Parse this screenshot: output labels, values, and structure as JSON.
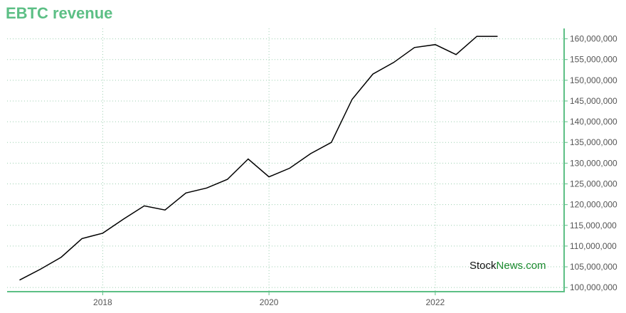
{
  "title": "EBTC revenue",
  "watermark": {
    "part1": "Stock",
    "part2": "News",
    "part3": ".com"
  },
  "colors": {
    "title": "#5cbf85",
    "axis": "#5cbf85",
    "grid": "#9ccfb0",
    "line": "#000000"
  },
  "chart_data": {
    "type": "line",
    "title": "EBTC revenue",
    "xlabel": "",
    "ylabel": "",
    "xlim": [
      2016.85,
      2023.55
    ],
    "ylim": [
      99000000,
      162500000
    ],
    "grid": true,
    "x_ticks": [
      {
        "value": 2018,
        "label": "2018"
      },
      {
        "value": 2020,
        "label": "2020"
      },
      {
        "value": 2022,
        "label": "2022"
      }
    ],
    "y_ticks": [
      {
        "value": 100000000,
        "label": "100,000,000"
      },
      {
        "value": 105000000,
        "label": "105,000,000"
      },
      {
        "value": 110000000,
        "label": "110,000,000"
      },
      {
        "value": 115000000,
        "label": "115,000,000"
      },
      {
        "value": 120000000,
        "label": "120,000,000"
      },
      {
        "value": 125000000,
        "label": "125,000,000"
      },
      {
        "value": 130000000,
        "label": "130,000,000"
      },
      {
        "value": 135000000,
        "label": "135,000,000"
      },
      {
        "value": 140000000,
        "label": "140,000,000"
      },
      {
        "value": 145000000,
        "label": "145,000,000"
      },
      {
        "value": 150000000,
        "label": "150,000,000"
      },
      {
        "value": 155000000,
        "label": "155,000,000"
      },
      {
        "value": 160000000,
        "label": "160,000,000"
      }
    ],
    "series": [
      {
        "x": [
          2017.0,
          2017.25,
          2017.5,
          2017.75,
          2018.0,
          2018.25,
          2018.5,
          2018.75,
          2019.0,
          2019.25,
          2019.5,
          2019.75,
          2020.0,
          2020.25,
          2020.5,
          2020.75,
          2021.0,
          2021.25,
          2021.5,
          2021.75,
          2022.0,
          2022.25,
          2022.5,
          2022.75
        ],
        "values": [
          101800000,
          104400000,
          107300000,
          111800000,
          113100000,
          116500000,
          119700000,
          118700000,
          122800000,
          124000000,
          126100000,
          131000000,
          126700000,
          128800000,
          132300000,
          135000000,
          145400000,
          151500000,
          154300000,
          157900000,
          158600000,
          156200000,
          160600000,
          160600000
        ]
      }
    ]
  }
}
